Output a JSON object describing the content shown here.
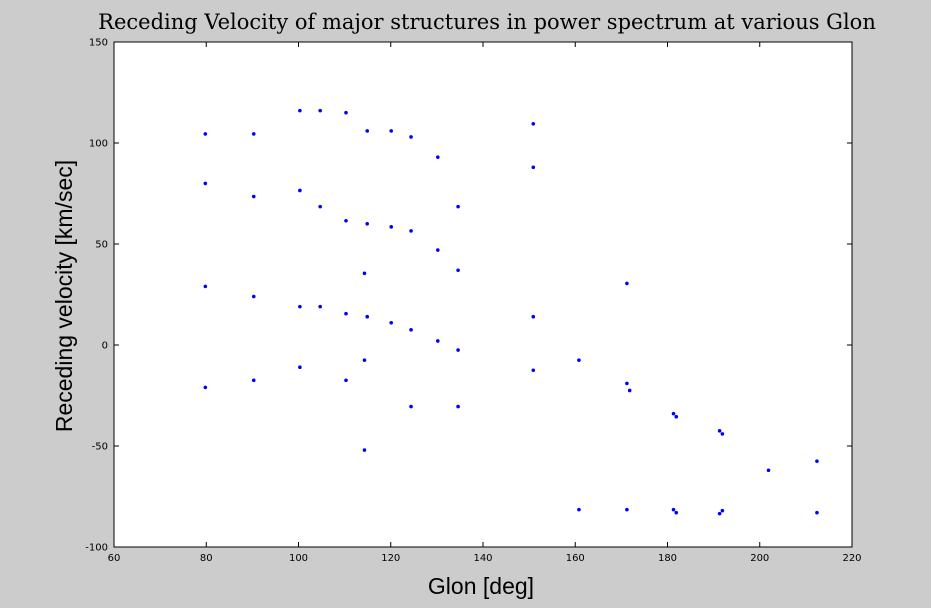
{
  "chart_data": {
    "type": "scatter",
    "title": "Receding Velocity of major structures in power spectrum at various Glon",
    "xlabel": "Glon [deg]",
    "ylabel": "Receding velocity [km/sec]",
    "xlim": [
      60,
      220
    ],
    "ylim": [
      -100,
      150
    ],
    "xticks": [
      60,
      80,
      100,
      120,
      140,
      160,
      180,
      200,
      220
    ],
    "yticks": [
      -100,
      -50,
      0,
      50,
      100,
      150
    ],
    "grid": false,
    "marker_color": "#0000ff",
    "series": [
      {
        "points": [
          [
            79.8,
            104.5
          ],
          [
            79.8,
            80
          ],
          [
            79.8,
            29
          ],
          [
            79.8,
            -21
          ],
          [
            90.3,
            104.5
          ],
          [
            90.3,
            73.5
          ],
          [
            90.3,
            24
          ],
          [
            90.3,
            -17.5
          ],
          [
            100.3,
            116
          ],
          [
            100.3,
            76.5
          ],
          [
            100.3,
            19
          ],
          [
            100.3,
            -11
          ],
          [
            104.7,
            116
          ],
          [
            104.7,
            68.5
          ],
          [
            104.7,
            19
          ],
          [
            110.3,
            115
          ],
          [
            110.3,
            61.5
          ],
          [
            110.3,
            15.5
          ],
          [
            110.3,
            -17.5
          ],
          [
            114.3,
            35.5
          ],
          [
            114.3,
            -7.5
          ],
          [
            114.3,
            -52
          ],
          [
            114.9,
            106
          ],
          [
            114.9,
            60
          ],
          [
            114.9,
            14
          ],
          [
            120.1,
            106
          ],
          [
            120.1,
            58.5
          ],
          [
            120.1,
            11
          ],
          [
            124.4,
            103
          ],
          [
            124.4,
            56.5
          ],
          [
            124.4,
            7.5
          ],
          [
            124.4,
            -30.5
          ],
          [
            130.2,
            93
          ],
          [
            130.2,
            47
          ],
          [
            130.2,
            2
          ],
          [
            134.6,
            68.5
          ],
          [
            134.6,
            37
          ],
          [
            134.6,
            -2.5
          ],
          [
            134.6,
            -30.5
          ],
          [
            150.9,
            109.5
          ],
          [
            150.9,
            88
          ],
          [
            150.9,
            14
          ],
          [
            150.9,
            -12.5
          ],
          [
            160.8,
            -7.5
          ],
          [
            160.8,
            -81.5
          ],
          [
            171.2,
            30.5
          ],
          [
            171.2,
            -19
          ],
          [
            171.2,
            -81.5
          ],
          [
            171.8,
            -22.5
          ],
          [
            181.3,
            -34
          ],
          [
            181.3,
            -81.5
          ],
          [
            181.9,
            -35.5
          ],
          [
            181.9,
            -83
          ],
          [
            191.3,
            -42.5
          ],
          [
            191.3,
            -83.5
          ],
          [
            191.9,
            -44
          ],
          [
            191.9,
            -82
          ],
          [
            201.9,
            -62
          ],
          [
            212.4,
            -57.5
          ],
          [
            212.4,
            -83
          ]
        ]
      }
    ]
  }
}
